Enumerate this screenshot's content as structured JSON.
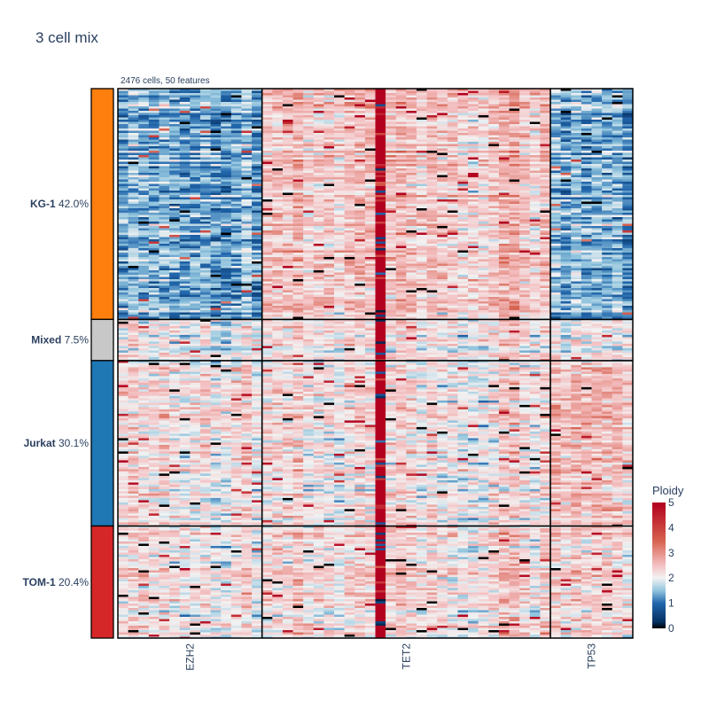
{
  "title": "3 cell mix",
  "subtitle": "2476 cells, 50 features",
  "chart_data": {
    "type": "heatmap",
    "total_cells": 2476,
    "total_features": 50,
    "groups": [
      {
        "name": "KG-1",
        "percent": "42.0%",
        "fraction": 0.42,
        "color": "#ff7f0e",
        "profile": [
          1.4,
          2.5,
          1.4
        ]
      },
      {
        "name": "Mixed",
        "percent": "7.5%",
        "fraction": 0.075,
        "color": "#c8c8c8",
        "profile": [
          2.0,
          2.2,
          2.0
        ]
      },
      {
        "name": "Jurkat",
        "percent": "30.1%",
        "fraction": 0.301,
        "color": "#1f77b4",
        "profile": [
          2.2,
          2.2,
          2.5
        ]
      },
      {
        "name": "TOM-1",
        "percent": "20.4%",
        "fraction": 0.204,
        "color": "#d62728",
        "profile": [
          2.2,
          2.3,
          2.3
        ]
      }
    ],
    "genes": [
      {
        "name": "EZH2",
        "features": 14
      },
      {
        "name": "TET2",
        "features": 28
      },
      {
        "name": "TP53",
        "features": 8
      }
    ],
    "hot_feature_index": 25,
    "hot_feature_value": 5,
    "colorscale": {
      "title": "Ploidy",
      "range": [
        0,
        5
      ],
      "ticks": [
        0,
        1,
        2,
        3,
        4,
        5
      ],
      "stops": [
        {
          "v": 0,
          "color": "#000000"
        },
        {
          "v": 0.25,
          "color": "#053061"
        },
        {
          "v": 1,
          "color": "#2166ac"
        },
        {
          "v": 1.5,
          "color": "#92c5de"
        },
        {
          "v": 2,
          "color": "#f2f2f2"
        },
        {
          "v": 2.5,
          "color": "#f4c1c3"
        },
        {
          "v": 3.5,
          "color": "#d6604d"
        },
        {
          "v": 5,
          "color": "#b2001f"
        }
      ]
    }
  }
}
